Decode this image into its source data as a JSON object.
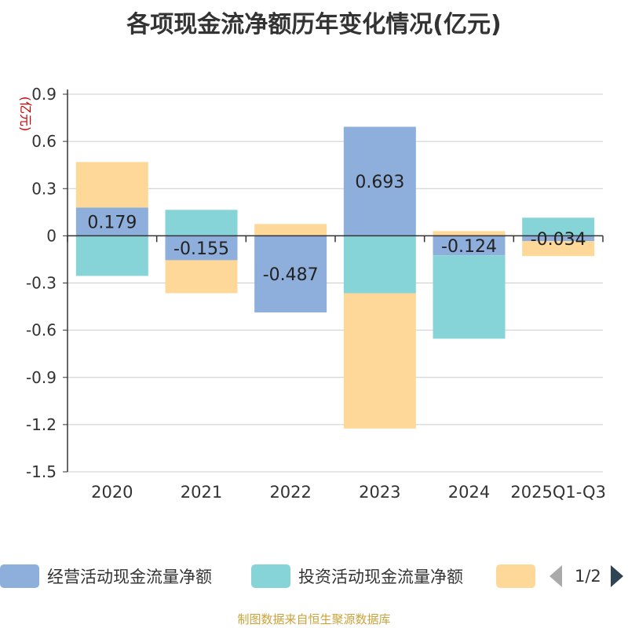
{
  "title": "各项现金流净额历年变化情况(亿元)",
  "footer": "制图数据来自恒生聚源数据库",
  "legend": {
    "items": [
      {
        "label": "经营活动现金流量净额",
        "color": "#8eaedb"
      },
      {
        "label": "投资活动现金流量净额",
        "color": "#86d4d8"
      },
      {
        "label": "",
        "color": "#fed898"
      }
    ],
    "page": "1/2"
  },
  "chart_data": {
    "type": "bar",
    "stacked": true,
    "title": "各项现金流净额历年变化情况(亿元)",
    "ylabel": "(亿元)",
    "xlabel": "",
    "ylim": [
      -1.5,
      0.9
    ],
    "yticks": [
      0.9,
      0.6,
      0.3,
      0,
      -0.3,
      -0.6,
      -0.9,
      -1.2,
      -1.5
    ],
    "ytick_labels": [
      "0.9",
      "0.6",
      "0.3",
      "0",
      "-0.3",
      "-0.6",
      "-0.9",
      "-1.2",
      "-1.5"
    ],
    "categories": [
      "2020",
      "2021",
      "2022",
      "2023",
      "2024",
      "2025Q1-Q3"
    ],
    "grid": true,
    "series": [
      {
        "name": "经营活动现金流量净额",
        "color": "#8eaedb",
        "values": [
          0.179,
          -0.155,
          -0.487,
          0.693,
          -0.124,
          -0.034
        ],
        "labels": [
          "0.179",
          "-0.155",
          "-0.487",
          "0.693",
          "-0.124",
          "-0.034"
        ]
      },
      {
        "name": "投资活动现金流量净额",
        "color": "#86d4d8",
        "values": [
          -0.255,
          0.165,
          0.0,
          -0.365,
          -0.53,
          0.115
        ]
      },
      {
        "name": "",
        "color": "#fed898",
        "values": [
          0.29,
          -0.21,
          0.075,
          -0.86,
          0.03,
          -0.095
        ]
      }
    ]
  }
}
